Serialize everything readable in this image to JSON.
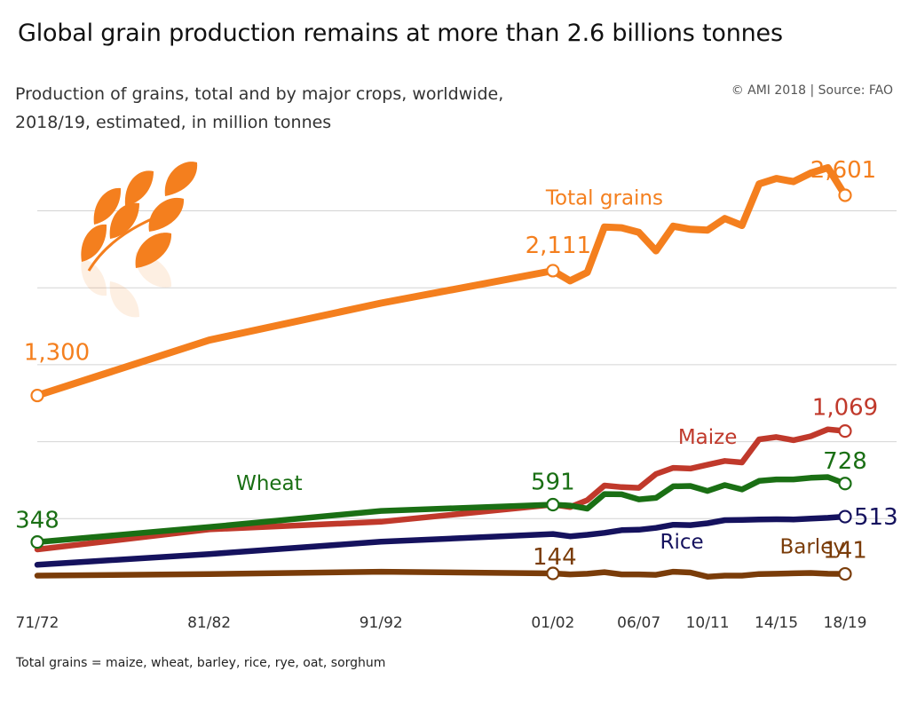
{
  "headline": "Global grain production remains at more than 2.6 billions tonnes",
  "subtitle_line1": "Production of grains, total and by major crops, worldwide,",
  "subtitle_line2": "2018/19, estimated, in million tonnes",
  "source": "© AMI 2018 | Source: FAO",
  "footnote": "Total grains = maize, wheat, barley, rice, rye, oat, sorghum",
  "icon": "wheat-ear-icon",
  "chart_data": {
    "type": "line",
    "ylim": [
      0,
      2900
    ],
    "grid": true,
    "x": [
      1971,
      1981,
      1991,
      2001,
      2002,
      2003,
      2004,
      2005,
      2006,
      2007,
      2008,
      2009,
      2010,
      2011,
      2012,
      2013,
      2014,
      2015,
      2016,
      2017,
      2018
    ],
    "x_ticks": [
      {
        "x": 1971,
        "label": "71/72"
      },
      {
        "x": 1981,
        "label": "81/82"
      },
      {
        "x": 1991,
        "label": "91/92"
      },
      {
        "x": 2001,
        "label": "01/02"
      },
      {
        "x": 2006,
        "label": "06/07"
      },
      {
        "x": 2010,
        "label": "10/11"
      },
      {
        "x": 2014,
        "label": "14/15"
      },
      {
        "x": 2018,
        "label": "18/19"
      }
    ],
    "series": [
      {
        "name": "Total grains",
        "color": "#f47f1e",
        "values": [
          1300,
          1660,
          1900,
          2111,
          2045,
          2100,
          2395,
          2390,
          2360,
          2240,
          2400,
          2380,
          2375,
          2450,
          2405,
          2675,
          2710,
          2690,
          2745,
          2780,
          2601
        ]
      },
      {
        "name": "Maize",
        "color": "#c0392b",
        "values": [
          300,
          430,
          480,
          591,
          575,
          620,
          715,
          705,
          700,
          790,
          830,
          825,
          850,
          875,
          865,
          1015,
          1030,
          1010,
          1035,
          1080,
          1069
        ]
      },
      {
        "name": "Wheat",
        "color": "#1a6f14",
        "values": [
          348,
          445,
          550,
          591,
          585,
          565,
          660,
          658,
          625,
          635,
          710,
          712,
          680,
          718,
          690,
          745,
          755,
          755,
          765,
          770,
          728
        ]
      },
      {
        "name": "Rice",
        "color": "#15125e",
        "values": [
          200,
          270,
          350,
          400,
          385,
          395,
          408,
          425,
          428,
          440,
          460,
          458,
          470,
          490,
          492,
          495,
          496,
          495,
          500,
          505,
          513
        ]
      },
      {
        "name": "Barley",
        "color": "#7a3c09",
        "values": [
          130,
          140,
          155,
          144,
          138,
          142,
          152,
          138,
          138,
          135,
          155,
          150,
          123,
          130,
          130,
          140,
          142,
          145,
          147,
          142,
          141
        ]
      }
    ],
    "series_labels": [
      {
        "series": 0,
        "text": "Total grains",
        "x": 2004.0,
        "y": 2540
      },
      {
        "series": 1,
        "text": "Maize",
        "x": 2010.0,
        "y": 985
      },
      {
        "series": 2,
        "text": "Wheat",
        "x": 1984.5,
        "y": 685
      },
      {
        "series": 3,
        "text": "Rice",
        "x": 2008.5,
        "y": 305
      },
      {
        "series": 4,
        "text": "Barley",
        "x": 2016.1,
        "y": 275
      }
    ],
    "value_labels": [
      {
        "series": 0,
        "text": "1,300",
        "x": 1971,
        "y": 1300
      },
      {
        "series": 0,
        "text": "2,111",
        "x": 2001,
        "y": 2111
      },
      {
        "series": 0,
        "text": "2,601",
        "x": 2018,
        "y": 2601
      },
      {
        "series": 1,
        "text": "1,069",
        "x": 2018,
        "y": 1069
      },
      {
        "series": 2,
        "text": "348",
        "x": 1971,
        "y": 348
      },
      {
        "series": 2,
        "text": "591",
        "x": 2001,
        "y": 591
      },
      {
        "series": 2,
        "text": "728",
        "x": 2018,
        "y": 728
      },
      {
        "series": 3,
        "text": "513",
        "x": 2018,
        "y": 513
      },
      {
        "series": 4,
        "text": "144",
        "x": 2001,
        "y": 144
      },
      {
        "series": 4,
        "text": "141",
        "x": 2018,
        "y": 141
      }
    ]
  }
}
